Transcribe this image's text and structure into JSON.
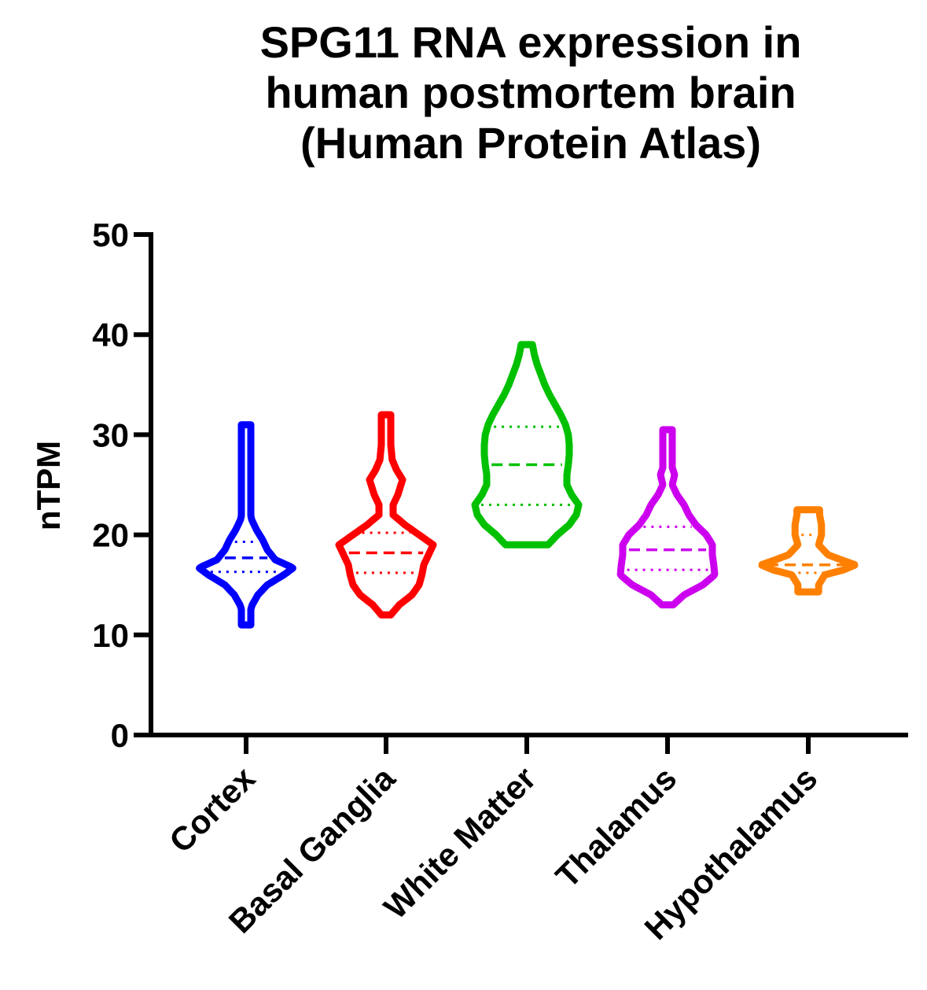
{
  "chart_data": {
    "type": "violin",
    "title_lines": [
      "SPG11 RNA expression in",
      "human postmortem brain",
      "(Human Protein Atlas)"
    ],
    "ylabel": "nTPM",
    "xlabel": "",
    "ylim": [
      0,
      50
    ],
    "yticks": [
      "0",
      "10",
      "20",
      "30",
      "40",
      "50"
    ],
    "grid": false,
    "categories": [
      "Cortex",
      "Basal Ganglia",
      "White Matter",
      "Thalamus",
      "Hypothalamus"
    ],
    "series": [
      {
        "category": "Cortex",
        "color": "#0000ff",
        "min": 11,
        "max": 31,
        "q1": 16.3,
        "median": 17.7,
        "q3": 19.3,
        "profile": [
          [
            11,
            0.02
          ],
          [
            12,
            0.06
          ],
          [
            13,
            0.13
          ],
          [
            14,
            0.25
          ],
          [
            15,
            0.45
          ],
          [
            16,
            0.8
          ],
          [
            16.7,
            1.0
          ],
          [
            17.5,
            0.62
          ],
          [
            18.5,
            0.45
          ],
          [
            19.5,
            0.35
          ],
          [
            20.5,
            0.22
          ],
          [
            21.5,
            0.12
          ],
          [
            22.5,
            0.07
          ],
          [
            23.5,
            0.06
          ],
          [
            25,
            0.04
          ],
          [
            27,
            0.03
          ],
          [
            29,
            0.03
          ],
          [
            31,
            0.02
          ]
        ]
      },
      {
        "category": "Basal Ganglia",
        "color": "#ff0000",
        "min": 12,
        "max": 32,
        "q1": 16.2,
        "median": 18.2,
        "q3": 20.2,
        "profile": [
          [
            12,
            0.1
          ],
          [
            13,
            0.28
          ],
          [
            14,
            0.55
          ],
          [
            15,
            0.7
          ],
          [
            16,
            0.76
          ],
          [
            17,
            0.8
          ],
          [
            18,
            0.9
          ],
          [
            19,
            1.0
          ],
          [
            20,
            0.7
          ],
          [
            21,
            0.4
          ],
          [
            22,
            0.15
          ],
          [
            23,
            0.15
          ],
          [
            24,
            0.25
          ],
          [
            25.5,
            0.35
          ],
          [
            26.5,
            0.22
          ],
          [
            27.5,
            0.13
          ],
          [
            29,
            0.1
          ],
          [
            30,
            0.06
          ],
          [
            31,
            0.06
          ],
          [
            32,
            0.08
          ]
        ]
      },
      {
        "category": "White Matter",
        "color": "#00c000",
        "min": 19,
        "max": 39,
        "q1": 23,
        "median": 27,
        "q3": 30.8,
        "profile": [
          [
            19,
            0.45
          ],
          [
            20,
            0.65
          ],
          [
            21,
            0.9
          ],
          [
            22,
            1.05
          ],
          [
            23,
            1.1
          ],
          [
            24,
            0.95
          ],
          [
            25,
            0.85
          ],
          [
            26,
            0.85
          ],
          [
            27,
            0.88
          ],
          [
            28,
            0.9
          ],
          [
            29,
            0.9
          ],
          [
            30,
            0.88
          ],
          [
            31,
            0.82
          ],
          [
            32,
            0.72
          ],
          [
            33,
            0.6
          ],
          [
            34,
            0.48
          ],
          [
            35,
            0.38
          ],
          [
            36,
            0.3
          ],
          [
            37,
            0.22
          ],
          [
            38,
            0.16
          ],
          [
            39,
            0.12
          ]
        ]
      },
      {
        "category": "Thalamus",
        "color": "#cc00ee",
        "min": 13,
        "max": 30.5,
        "q1": 16.5,
        "median": 18.5,
        "q3": 20.8,
        "profile": [
          [
            13,
            0.12
          ],
          [
            14,
            0.35
          ],
          [
            15,
            0.75
          ],
          [
            16,
            1.0
          ],
          [
            17,
            0.98
          ],
          [
            18,
            0.95
          ],
          [
            19,
            0.95
          ],
          [
            20,
            0.82
          ],
          [
            21,
            0.6
          ],
          [
            22,
            0.45
          ],
          [
            23,
            0.35
          ],
          [
            24,
            0.2
          ],
          [
            25,
            0.1
          ],
          [
            26,
            0.15
          ],
          [
            27,
            0.08
          ],
          [
            28,
            0.06
          ],
          [
            29,
            0.05
          ],
          [
            30.5,
            0.05
          ]
        ]
      },
      {
        "category": "Hypothalamus",
        "color": "#ff8000",
        "min": 14.3,
        "max": 22.5,
        "q1": 16.2,
        "median": 17.0,
        "q3": 20.0,
        "profile": [
          [
            14.3,
            0.22
          ],
          [
            15,
            0.22
          ],
          [
            16,
            0.35
          ],
          [
            16.5,
            0.75
          ],
          [
            17,
            1.0
          ],
          [
            17.5,
            0.7
          ],
          [
            18,
            0.42
          ],
          [
            19,
            0.22
          ],
          [
            20,
            0.28
          ],
          [
            21,
            0.28
          ],
          [
            22,
            0.24
          ],
          [
            22.5,
            0.24
          ]
        ]
      }
    ]
  }
}
